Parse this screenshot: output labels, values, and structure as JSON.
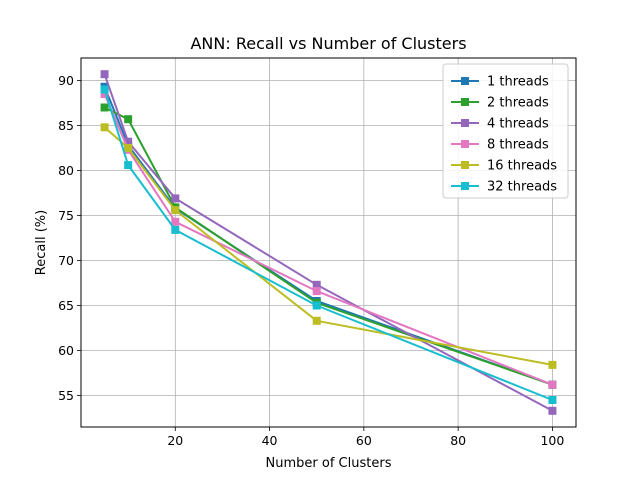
{
  "chart_data": {
    "type": "line",
    "title": "ANN: Recall vs Number of Clusters",
    "xlabel": "Number of Clusters",
    "ylabel": "Recall (%)",
    "x": [
      5,
      10,
      20,
      50,
      100
    ],
    "xlim": [
      0,
      105
    ],
    "ylim": [
      51.5,
      92.5
    ],
    "xticks": [
      20,
      40,
      60,
      80,
      100
    ],
    "yticks": [
      55,
      60,
      65,
      70,
      75,
      80,
      85,
      90
    ],
    "grid": true,
    "legend_position": "top-right",
    "series": [
      {
        "name": "1 threads",
        "color": "#1f77b4",
        "values": [
          89.3,
          82.8,
          75.8,
          65.5,
          56.2
        ]
      },
      {
        "name": "2 threads",
        "color": "#2ca02c",
        "values": [
          87.0,
          85.7,
          75.9,
          65.3,
          56.2
        ]
      },
      {
        "name": "4 threads",
        "color": "#9467bd",
        "values": [
          90.7,
          83.2,
          76.9,
          67.3,
          53.3
        ]
      },
      {
        "name": "8 threads",
        "color": "#e377c2",
        "values": [
          88.5,
          82.3,
          74.3,
          66.6,
          56.2
        ]
      },
      {
        "name": "16 threads",
        "color": "#bcbd22",
        "values": [
          84.8,
          82.5,
          75.6,
          63.3,
          58.4
        ]
      },
      {
        "name": "32 threads",
        "color": "#17becf",
        "values": [
          89.0,
          80.6,
          73.4,
          65.0,
          54.5
        ]
      }
    ]
  }
}
